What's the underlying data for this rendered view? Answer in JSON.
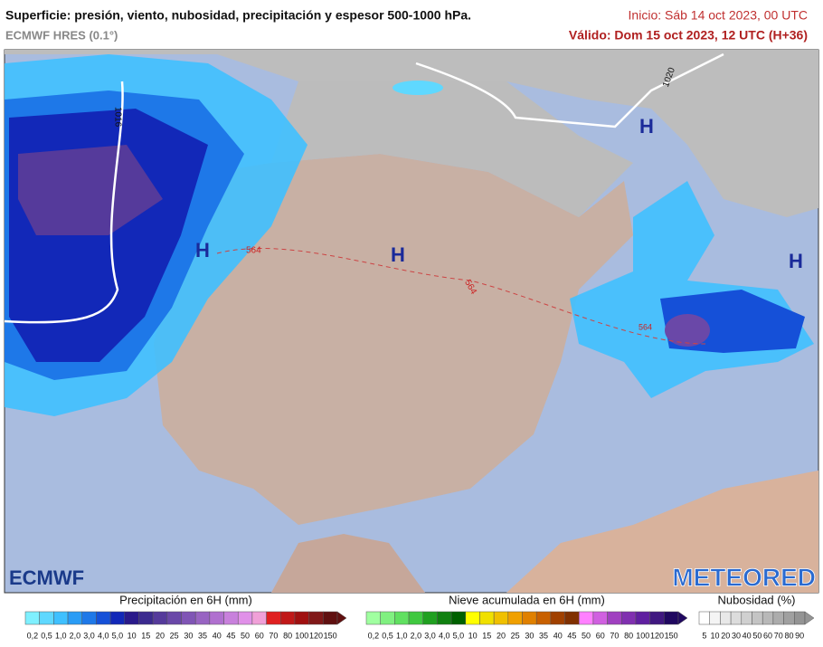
{
  "header": {
    "title": "Superficie: presión, viento, nubosidad, precipitación y espesor 500-1000 hPa.",
    "model": "ECMWF HRES (0.1°)",
    "init": "Inicio: Sáb 14 oct 2023, 00 UTC",
    "valid": "Válido: Dom 15 oct 2023, 12 UTC (H+36)"
  },
  "map": {
    "labels": [
      "H",
      "H",
      "H",
      "H",
      "1016",
      "1020",
      "564",
      "564",
      "564"
    ],
    "logos": [
      "ECMWF",
      "METEORED"
    ]
  },
  "legends": [
    {
      "title": "Precipitación en 6H (mm)",
      "labels": [
        "0,2",
        "0,5",
        "1,0",
        "2,0",
        "3,0",
        "4,0",
        "5,0",
        "10",
        "15",
        "20",
        "25",
        "30",
        "35",
        "40",
        "45",
        "50",
        "60",
        "70",
        "80",
        "100",
        "120",
        "150"
      ],
      "colors": [
        "#7ff0ff",
        "#5fd8ff",
        "#3fc0ff",
        "#2a9cf5",
        "#1e78e8",
        "#1550d8",
        "#1228b8",
        "#2a1a8a",
        "#3b2a8f",
        "#553a9b",
        "#6a48a8",
        "#8055b5",
        "#9864c2",
        "#b070cf",
        "#c880dc",
        "#e090e8",
        "#f0a0d8",
        "#e02020",
        "#c01818",
        "#a01010",
        "#801818",
        "#601010"
      ]
    },
    {
      "title": "Nieve acumulada en 6H (mm)",
      "labels": [
        "0,2",
        "0,5",
        "1,0",
        "2,0",
        "3,0",
        "4,0",
        "5,0",
        "10",
        "15",
        "20",
        "25",
        "30",
        "35",
        "40",
        "45",
        "50",
        "60",
        "70",
        "80",
        "100",
        "120",
        "150"
      ],
      "colors": [
        "#a0ffa0",
        "#80f080",
        "#60e060",
        "#40c840",
        "#20a020",
        "#108010",
        "#006000",
        "#ffff00",
        "#f0e000",
        "#f0c000",
        "#f0a000",
        "#e08000",
        "#c86000",
        "#a04000",
        "#803000",
        "#ff80ff",
        "#d060e0",
        "#a040c0",
        "#8030b0",
        "#6020a0",
        "#401880",
        "#200860"
      ]
    },
    {
      "title": "Nubosidad (%)",
      "labels": [
        "5",
        "10",
        "20",
        "30",
        "40",
        "50",
        "60",
        "70",
        "80",
        "90"
      ],
      "colors": [
        "#ffffff",
        "#f4f4f4",
        "#e8e8e8",
        "#dcdcdc",
        "#d0d0d0",
        "#c4c4c4",
        "#b8b8b8",
        "#acacac",
        "#a0a0a0",
        "#949494"
      ]
    }
  ]
}
